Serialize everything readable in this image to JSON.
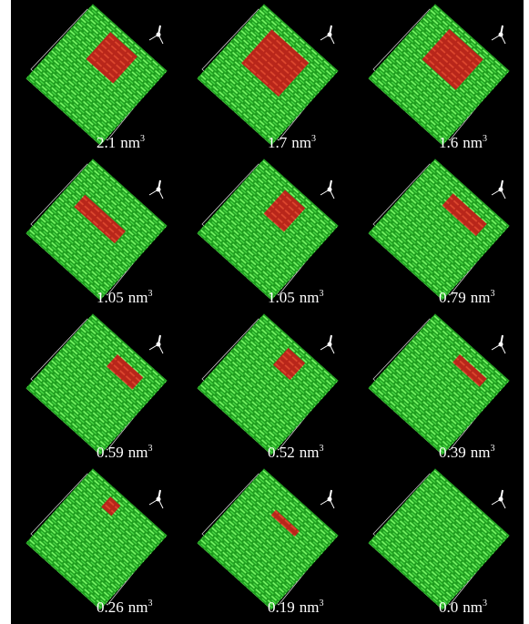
{
  "panels": [
    {
      "value": "2.1",
      "unit": "nm",
      "power": "3"
    },
    {
      "value": "1.7",
      "unit": "nm",
      "power": "3"
    },
    {
      "value": "1.6",
      "unit": "nm",
      "power": "3"
    },
    {
      "value": "1.05",
      "unit": "nm",
      "power": "3"
    },
    {
      "value": "1.05",
      "unit": "nm",
      "power": "3"
    },
    {
      "value": "0.79",
      "unit": "nm",
      "power": "3"
    },
    {
      "value": "0.59",
      "unit": "nm",
      "power": "3"
    },
    {
      "value": "0.52",
      "unit": "nm",
      "power": "3"
    },
    {
      "value": "0.39",
      "unit": "nm",
      "power": "3"
    },
    {
      "value": "0.26",
      "unit": "nm",
      "power": "3"
    },
    {
      "value": "0.19",
      "unit": "nm",
      "power": "3"
    },
    {
      "value": "0.0",
      "unit": "nm",
      "power": "3"
    }
  ]
}
